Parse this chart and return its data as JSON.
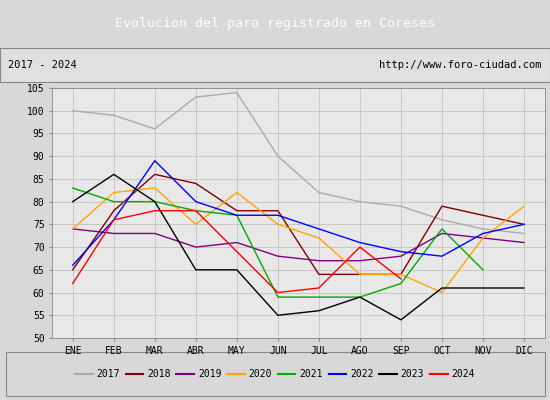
{
  "title": "Evolucion del paro registrado en Coreses",
  "subtitle_left": "2017 - 2024",
  "subtitle_right": "http://www.foro-ciudad.com",
  "months": [
    "ENE",
    "FEB",
    "MAR",
    "ABR",
    "MAY",
    "JUN",
    "JUL",
    "AGO",
    "SEP",
    "OCT",
    "NOV",
    "DIC"
  ],
  "ylim": [
    50,
    105
  ],
  "yticks": [
    50,
    55,
    60,
    65,
    70,
    75,
    80,
    85,
    90,
    95,
    100,
    105
  ],
  "series": {
    "2017": {
      "color": "#aaaaaa",
      "data": [
        100,
        99,
        96,
        103,
        104,
        90,
        82,
        80,
        79,
        76,
        74,
        73
      ]
    },
    "2018": {
      "color": "#800000",
      "data": [
        65,
        78,
        86,
        84,
        78,
        78,
        64,
        64,
        64,
        79,
        77,
        75
      ]
    },
    "2019": {
      "color": "#800080",
      "data": [
        74,
        73,
        73,
        70,
        71,
        68,
        67,
        67,
        68,
        73,
        72,
        71
      ]
    },
    "2020": {
      "color": "#ffa500",
      "data": [
        74,
        82,
        83,
        75,
        82,
        75,
        72,
        64,
        64,
        60,
        72,
        79
      ]
    },
    "2021": {
      "color": "#00aa00",
      "data": [
        83,
        80,
        80,
        78,
        77,
        59,
        59,
        59,
        62,
        74,
        65,
        null
      ]
    },
    "2022": {
      "color": "#0000ff",
      "data": [
        66,
        76,
        89,
        80,
        77,
        77,
        74,
        71,
        69,
        68,
        73,
        75
      ]
    },
    "2023": {
      "color": "#000000",
      "data": [
        80,
        86,
        80,
        65,
        65,
        55,
        56,
        59,
        54,
        61,
        61,
        61
      ]
    },
    "2024": {
      "color": "#ff0000",
      "data": [
        62,
        76,
        78,
        78,
        69,
        60,
        61,
        70,
        63,
        null,
        null,
        null
      ]
    }
  },
  "background_color": "#d8d8d8",
  "plot_bg_color": "#e8e8e8",
  "title_bg_color": "#4a7abf",
  "title_text_color": "#ffffff",
  "header_bg_color": "#e0e0e0",
  "title_fontsize": 9.5,
  "subtitle_fontsize": 7.5,
  "tick_fontsize": 7,
  "legend_fontsize": 7
}
